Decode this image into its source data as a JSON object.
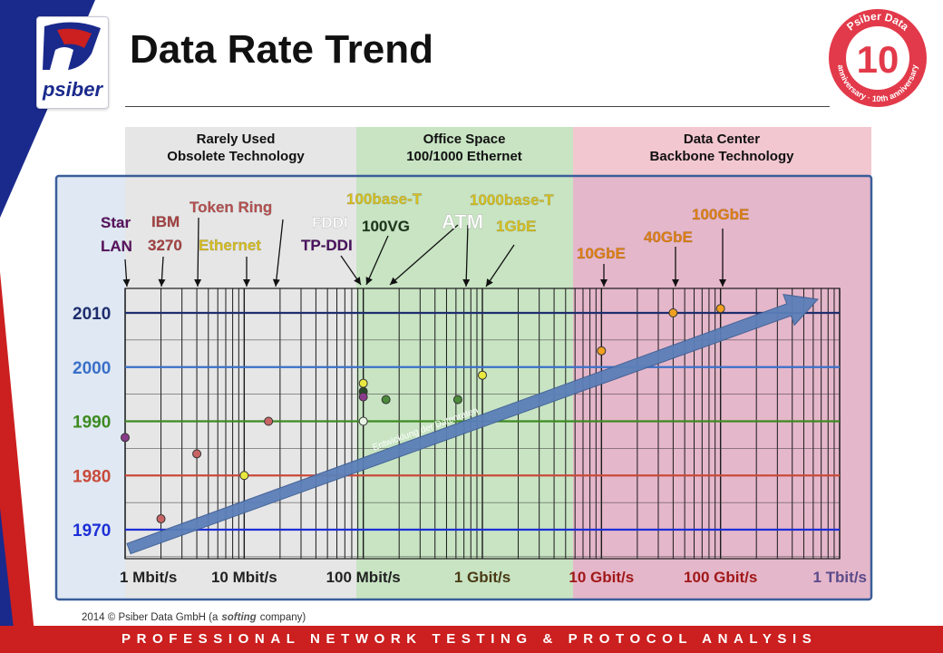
{
  "header": {
    "title": "Data Rate Trend",
    "logo_text": "psiber",
    "badge_top": "Psiber Data",
    "badge_number": "10",
    "badge_bottom": "anniversary · 10th anniversary"
  },
  "bands": [
    {
      "line1": "Rarely Used",
      "line2": "Obsolete Technology",
      "color": "#e6e6e6"
    },
    {
      "line1": "Office Space",
      "line2": "100/1000 Ethernet",
      "color": "#c8e4c3"
    },
    {
      "line1": "Data Center",
      "line2": "Backbone Technology",
      "color": "#f3c7d0"
    }
  ],
  "chart_data": {
    "type": "scatter",
    "title": "Data Rate Trend",
    "x_scale": "log",
    "x_unit": "bit/s",
    "x_ticks": [
      {
        "value": 1000000,
        "label": "1 Mbit/s",
        "color": "#222222"
      },
      {
        "value": 10000000,
        "label": "10 Mbit/s",
        "color": "#222222"
      },
      {
        "value": 100000000,
        "label": "100 Mbit/s",
        "color": "#222222"
      },
      {
        "value": 1000000000,
        "label": "1 Gbit/s",
        "color": "#4a3a14"
      },
      {
        "value": 10000000000,
        "label": "10 Gbit/s",
        "color": "#a01818"
      },
      {
        "value": 100000000000,
        "label": "100 Gbit/s",
        "color": "#a01818"
      },
      {
        "value": 1000000000000,
        "label": "1 Tbit/s",
        "color": "#5a4a8a"
      }
    ],
    "xlim": [
      1000000,
      1000000000000
    ],
    "y_ticks": [
      {
        "value": 1970,
        "label": "1970",
        "color": "#1d2fd6"
      },
      {
        "value": 1980,
        "label": "1980",
        "color": "#c94a3a"
      },
      {
        "value": 1990,
        "label": "1990",
        "color": "#3d8a22"
      },
      {
        "value": 2000,
        "label": "2000",
        "color": "#3a70c8"
      },
      {
        "value": 2010,
        "label": "2010",
        "color": "#1e2e6e"
      }
    ],
    "ylim": [
      1966,
      2013
    ],
    "points": [
      {
        "name": "Star LAN",
        "x": 1000000,
        "y": 1987,
        "color": "#8a3a8a"
      },
      {
        "name": "IBM 3270",
        "x": 2000000,
        "y": 1972,
        "color": "#c86464"
      },
      {
        "name": "Token Ring",
        "x": 4000000,
        "y": 1984,
        "color": "#c86464"
      },
      {
        "name": "Ethernet",
        "x": 10000000,
        "y": 1980,
        "color": "#e8e840"
      },
      {
        "name": "Token Ring",
        "x": 16000000,
        "y": 1990,
        "color": "#c86464"
      },
      {
        "name": "100base-T",
        "x": 100000000,
        "y": 1997,
        "color": "#e8e840"
      },
      {
        "name": "100VG",
        "x": 100000000,
        "y": 1995.5,
        "color": "#2a4a2a"
      },
      {
        "name": "FDDI",
        "x": 100000000,
        "y": 1994.5,
        "color": "#8a3a8a"
      },
      {
        "name": "TP-DDI",
        "x": 100000000,
        "y": 1990,
        "color": "#e8f4e4"
      },
      {
        "name": "ATM",
        "x": 155000000,
        "y": 1994,
        "color": "#4a8a3a"
      },
      {
        "name": "ATM",
        "x": 622000000,
        "y": 1994,
        "color": "#4a8a3a"
      },
      {
        "name": "1000base-T",
        "x": 1000000000,
        "y": 1998.5,
        "color": "#e8e840"
      },
      {
        "name": "10GbE",
        "x": 10000000000,
        "y": 2003,
        "color": "#f0a020"
      },
      {
        "name": "40GbE",
        "x": 40000000000,
        "y": 2010,
        "color": "#f0a020"
      },
      {
        "name": "100GbE",
        "x": 100000000000,
        "y": 2010.8,
        "color": "#f0a020"
      }
    ],
    "tech_labels": [
      {
        "text": "Star",
        "color": "#5a1060",
        "x": 1050000,
        "y": 2008
      },
      {
        "text": "LAN",
        "color": "#5a1060",
        "x": 1050000,
        "y": 2008
      },
      {
        "text": "IBM",
        "color": "#a84040",
        "x": 2000000,
        "y": 2008
      },
      {
        "text": "3270",
        "color": "#a84040",
        "x": 2000000,
        "y": 2008
      },
      {
        "text": "Token Ring",
        "color": "#b85050",
        "x": 4000000,
        "y": 2008
      },
      {
        "text": "Ethernet",
        "color": "#d8c020",
        "x": 10000000,
        "y": 2008
      },
      {
        "text": "FDDI",
        "color": "#ffffff",
        "x": 60000000,
        "y": 2008
      },
      {
        "text": "TP-DDI",
        "color": "#4a1060",
        "x": 60000000,
        "y": 2008
      },
      {
        "text": "100base-T",
        "color": "#d8c020",
        "x": 100000000,
        "y": 2008
      },
      {
        "text": "100VG",
        "color": "#1a3a1a",
        "x": 100000000,
        "y": 2008
      },
      {
        "text": "ATM",
        "color": "#ffffff",
        "x": 155000000,
        "y": 2008
      },
      {
        "text": "1000base-T",
        "color": "#d8c020",
        "x": 1000000000,
        "y": 2008
      },
      {
        "text": "1GbE",
        "color": "#d8c020",
        "x": 1000000000,
        "y": 2008
      },
      {
        "text": "10GbE",
        "color": "#e08010",
        "x": 10000000000,
        "y": 2008
      },
      {
        "text": "40GbE",
        "color": "#e08010",
        "x": 40000000000,
        "y": 2008
      },
      {
        "text": "100GbE",
        "color": "#e08010",
        "x": 100000000000,
        "y": 2008
      }
    ],
    "trend_label": "Entwicklung der Datenraten",
    "grid": true
  },
  "footer": {
    "copyright_prefix": "2014 © Psiber Data GmbH  (a",
    "softing": "softing",
    "copyright_suffix": "company)",
    "tagline": "PROFESSIONAL NETWORK TESTING & PROTOCOL ANALYSIS"
  }
}
